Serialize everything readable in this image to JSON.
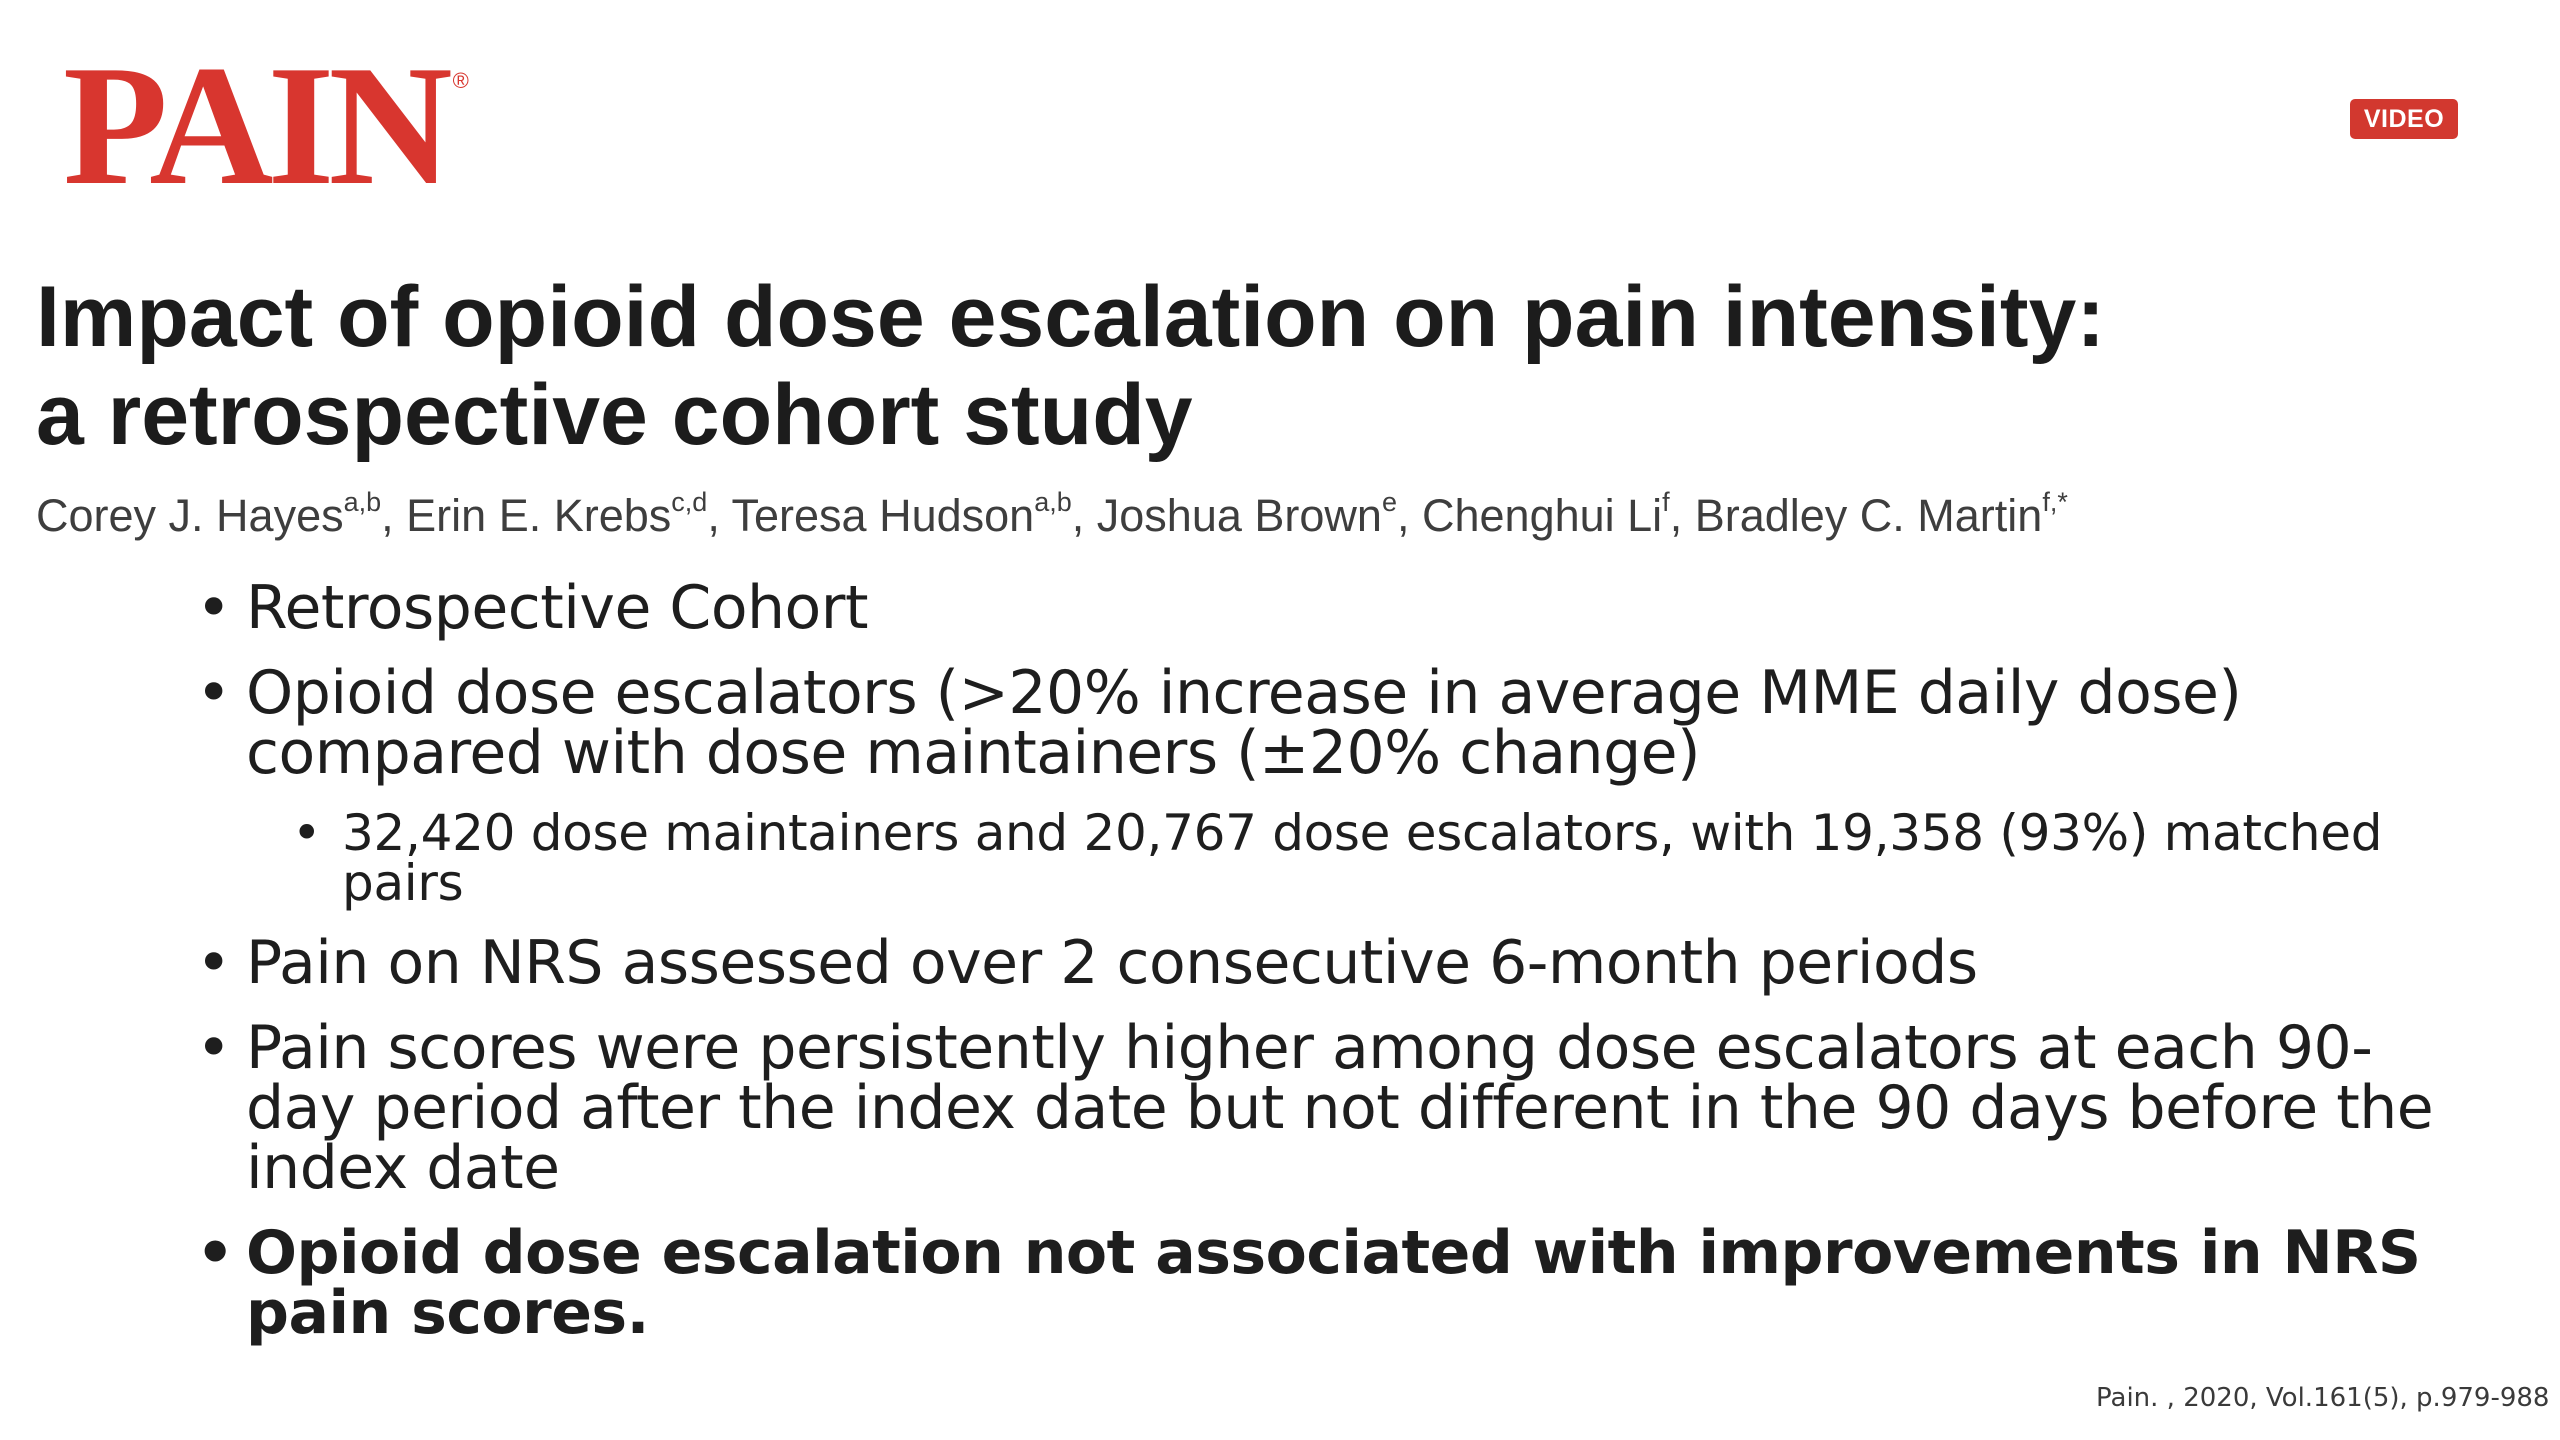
{
  "journal": {
    "logo_text": "PAIN",
    "registered_mark": "®",
    "brand_color": "#d8362f"
  },
  "badge": {
    "label": "VIDEO",
    "color": "#d2382f"
  },
  "article": {
    "title_line1": "Impact of opioid dose escalation on pain intensity:",
    "title_line2": "a retrospective cohort study",
    "authors": [
      {
        "name": "Corey J. Hayes",
        "affil": "a,b",
        "sep": ", "
      },
      {
        "name": "Erin E. Krebs",
        "affil": "c,d",
        "sep": ", "
      },
      {
        "name": "Teresa Hudson",
        "affil": "a,b",
        "sep": ", "
      },
      {
        "name": "Joshua Brown",
        "affil": "e",
        "sep": ", "
      },
      {
        "name": "Chenghui Li",
        "affil": "f",
        "sep": ", "
      },
      {
        "name": "Bradley C. Martin",
        "affil": "f,*",
        "sep": ""
      }
    ]
  },
  "bullets": [
    {
      "text": "Retrospective Cohort"
    },
    {
      "text": "Opioid dose escalators (>20% increase in average MME daily dose) compared with dose maintainers (±20% change)"
    },
    {
      "text": "32,420 dose maintainers and 20,767 dose escalators, with 19,358 (93%) matched pairs"
    },
    {
      "text": "Pain on NRS assessed over 2 consecutive 6-month periods"
    },
    {
      "text": "Pain scores were persistently higher among dose escalators at each 90-day period after the index date but not different in the 90 days before the index date"
    },
    {
      "text": "Opioid dose escalation not associated with improvements in NRS pain scores."
    }
  ],
  "citation": "Pain. , 2020, Vol.161(5), p.979-988"
}
